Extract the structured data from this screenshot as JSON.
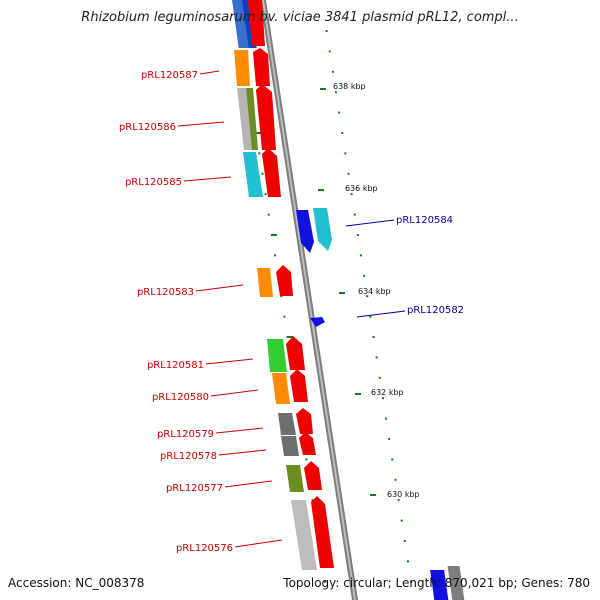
{
  "title": "Rhizobium leguminosarum bv. viciae 3841 plasmid pRL12, compl...",
  "footer": {
    "accession": "Accession: NC_008378",
    "summary": "Topology: circular; Length: 870,021 bp; Genes: 780"
  },
  "colors": {
    "forward_label": "#cc0000",
    "reverse_label": "#0000aa",
    "backbone": "#888888",
    "tick": "#1a7a1a"
  },
  "kbp_markers": [
    "638 kbp",
    "636 kbp",
    "634 kbp",
    "632 kbp",
    "630 kbp"
  ],
  "genes_forward": [
    {
      "id": "pRL120587"
    },
    {
      "id": "pRL120586"
    },
    {
      "id": "pRL120585"
    },
    {
      "id": "pRL120583"
    },
    {
      "id": "pRL120581"
    },
    {
      "id": "pRL120580"
    },
    {
      "id": "pRL120579"
    },
    {
      "id": "pRL120578"
    },
    {
      "id": "pRL120577"
    },
    {
      "id": "pRL120576"
    }
  ],
  "genes_reverse": [
    {
      "id": "pRL120584"
    },
    {
      "id": "pRL120582"
    }
  ]
}
